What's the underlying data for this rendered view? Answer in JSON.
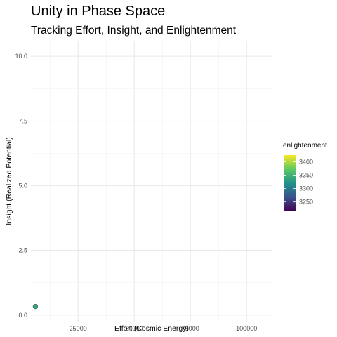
{
  "chart_data": {
    "type": "scatter",
    "title": "Unity in Phase Space",
    "subtitle": "Tracking Effort, Insight, and Enlightenment",
    "xlabel": "Effort (Cosmic Energy)",
    "ylabel": "Insight (Realized Potential)",
    "xlim": [
      4000,
      111500
    ],
    "ylim": [
      -0.25,
      10.6
    ],
    "x_ticks": [
      25000,
      50000,
      75000,
      100000
    ],
    "x_tick_labels": [
      "25000",
      "50000",
      "75000",
      "100000"
    ],
    "y_ticks": [
      0,
      2.5,
      5,
      7.5,
      10
    ],
    "y_tick_labels": [
      "0.0",
      "2.5",
      "5.0",
      "7.5",
      "10.0"
    ],
    "grid": true,
    "points": [
      {
        "x": 6000,
        "y": 0.33,
        "enlightenment": 3340
      }
    ],
    "legend": {
      "title": "enlightenment",
      "position": "right",
      "range": [
        3215,
        3425
      ],
      "ticks": [
        3250,
        3300,
        3350,
        3400
      ],
      "tick_labels": [
        "3250",
        "3300",
        "3350",
        "3400"
      ],
      "colormap": [
        "#440154",
        "#3b528b",
        "#21908d",
        "#5dc963",
        "#fde725"
      ]
    }
  }
}
